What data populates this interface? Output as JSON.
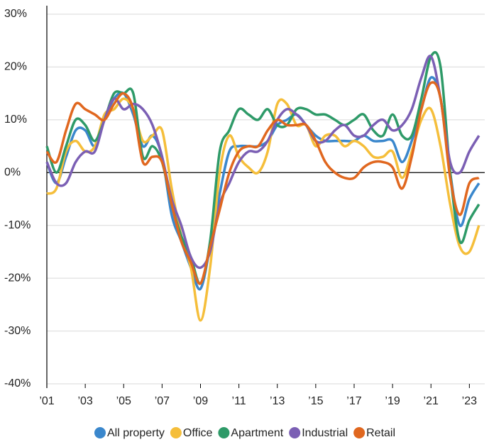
{
  "chart_data": {
    "type": "line",
    "x": [
      2001,
      2001.5,
      2002,
      2002.5,
      2003,
      2003.5,
      2004,
      2004.5,
      2005,
      2005.5,
      2006,
      2006.5,
      2007,
      2007.5,
      2008,
      2008.5,
      2009,
      2009.5,
      2010,
      2010.5,
      2011,
      2011.5,
      2012,
      2012.5,
      2013,
      2013.5,
      2014,
      2014.5,
      2015,
      2015.5,
      2016,
      2016.5,
      2017,
      2017.5,
      2018,
      2018.5,
      2019,
      2019.5,
      2020,
      2020.5,
      2021,
      2021.5,
      2022,
      2022.5,
      2023,
      2023.5
    ],
    "series": [
      {
        "name": "All property",
        "color": "#3a87cc",
        "values": [
          2,
          -2,
          3,
          8,
          8,
          5,
          10,
          14,
          15,
          11,
          5,
          7,
          3,
          -8,
          -13,
          -18,
          -22,
          -14,
          -4,
          4,
          5,
          5,
          5,
          6,
          9,
          10,
          11,
          9,
          7,
          6,
          6,
          6,
          6,
          7,
          6,
          6,
          6,
          2,
          6,
          12,
          18,
          14,
          0,
          -10,
          -5,
          -2
        ]
      },
      {
        "name": "Office",
        "color": "#f5be3a",
        "values": [
          -4,
          -3,
          4,
          6,
          4,
          5,
          11,
          12,
          14,
          12,
          6,
          7,
          8,
          -3,
          -12,
          -18,
          -28,
          -18,
          0,
          7,
          3,
          1,
          0,
          4,
          13,
          13,
          9,
          9,
          5,
          7,
          7,
          5,
          6,
          5,
          3,
          3,
          4,
          -1,
          4,
          10,
          12,
          5,
          -6,
          -14,
          -15,
          -10
        ]
      },
      {
        "name": "Apartment",
        "color": "#2e9a68",
        "values": [
          5,
          0,
          5,
          10,
          9,
          6,
          10,
          15,
          15,
          15,
          3,
          5,
          2,
          -6,
          -12,
          -16,
          -21,
          -13,
          4,
          8,
          12,
          11,
          10,
          12,
          9,
          9,
          12,
          12,
          11,
          11,
          10,
          9,
          10,
          11,
          8,
          7,
          11,
          7,
          7,
          14,
          22,
          20,
          0,
          -13,
          -9,
          -6
        ]
      },
      {
        "name": "Industrial",
        "color": "#7b5fb4",
        "values": [
          2,
          -2,
          -2,
          2,
          4,
          4,
          10,
          14,
          12,
          13,
          12,
          9,
          3,
          -5,
          -10,
          -16,
          -18,
          -15,
          -6,
          -2,
          2,
          4,
          4,
          6,
          10,
          12,
          11,
          9,
          6,
          6,
          8,
          9,
          7,
          7,
          9,
          10,
          8,
          9,
          12,
          18,
          22,
          14,
          2,
          0,
          4,
          7
        ]
      },
      {
        "name": "Retail",
        "color": "#e0671f",
        "values": [
          4,
          2,
          8,
          13,
          12,
          11,
          10,
          13,
          15,
          12,
          2,
          3,
          2,
          -6,
          -13,
          -17,
          -21,
          -14,
          -7,
          0,
          4,
          5,
          5,
          8,
          10,
          9,
          9,
          9,
          6,
          2,
          0,
          -1,
          -1,
          1,
          2,
          2,
          1,
          -3,
          3,
          12,
          17,
          14,
          -1,
          -8,
          -2,
          -1
        ]
      }
    ],
    "xlim": [
      2001,
      2023.8
    ],
    "xticks": [
      {
        "value": 2001,
        "label": "’01"
      },
      {
        "value": 2003,
        "label": "’03"
      },
      {
        "value": 2005,
        "label": "’05"
      },
      {
        "value": 2007,
        "label": "’07"
      },
      {
        "value": 2009,
        "label": "’09"
      },
      {
        "value": 2011,
        "label": "’11"
      },
      {
        "value": 2013,
        "label": "’13"
      },
      {
        "value": 2015,
        "label": "’15"
      },
      {
        "value": 2017,
        "label": "’17"
      },
      {
        "value": 2019,
        "label": "’19"
      },
      {
        "value": 2021,
        "label": "’21"
      },
      {
        "value": 2023,
        "label": "’23"
      }
    ],
    "ylim": [
      -40,
      30
    ],
    "yticks": [
      {
        "value": -40,
        "label": "-40%"
      },
      {
        "value": -30,
        "label": "-30%"
      },
      {
        "value": -20,
        "label": "-20%"
      },
      {
        "value": -10,
        "label": "-10%"
      },
      {
        "value": 0,
        "label": "0%"
      },
      {
        "value": 10,
        "label": "10%"
      },
      {
        "value": 20,
        "label": "20%"
      },
      {
        "value": 30,
        "label": "30%"
      }
    ],
    "grid": true
  }
}
